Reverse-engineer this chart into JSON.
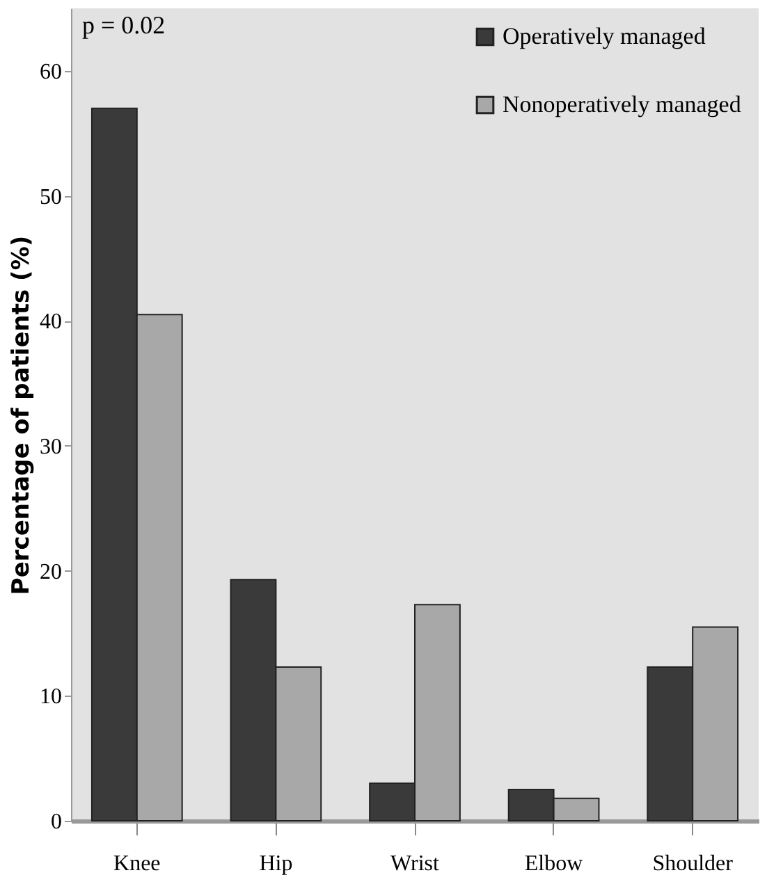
{
  "chart_data": {
    "type": "bar",
    "ylabel": "Percentage of patients (%)",
    "annotations": [
      "p = 0.02"
    ],
    "categories": [
      "Knee",
      "Hip",
      "Wrist",
      "Elbow",
      "Shoulder"
    ],
    "series": [
      {
        "name": "Operatively managed",
        "color": "#3a3a3a",
        "values": [
          57,
          19.3,
          3,
          2.5,
          12.3
        ]
      },
      {
        "name": "Nonoperatively managed",
        "color": "#a8a8a8",
        "values": [
          40.5,
          12.3,
          17.3,
          1.8,
          15.5
        ]
      }
    ],
    "ylim": [
      0,
      65
    ],
    "yticks": [
      0,
      10,
      20,
      30,
      40,
      50,
      60
    ],
    "grid": false,
    "legend": "top right"
  }
}
